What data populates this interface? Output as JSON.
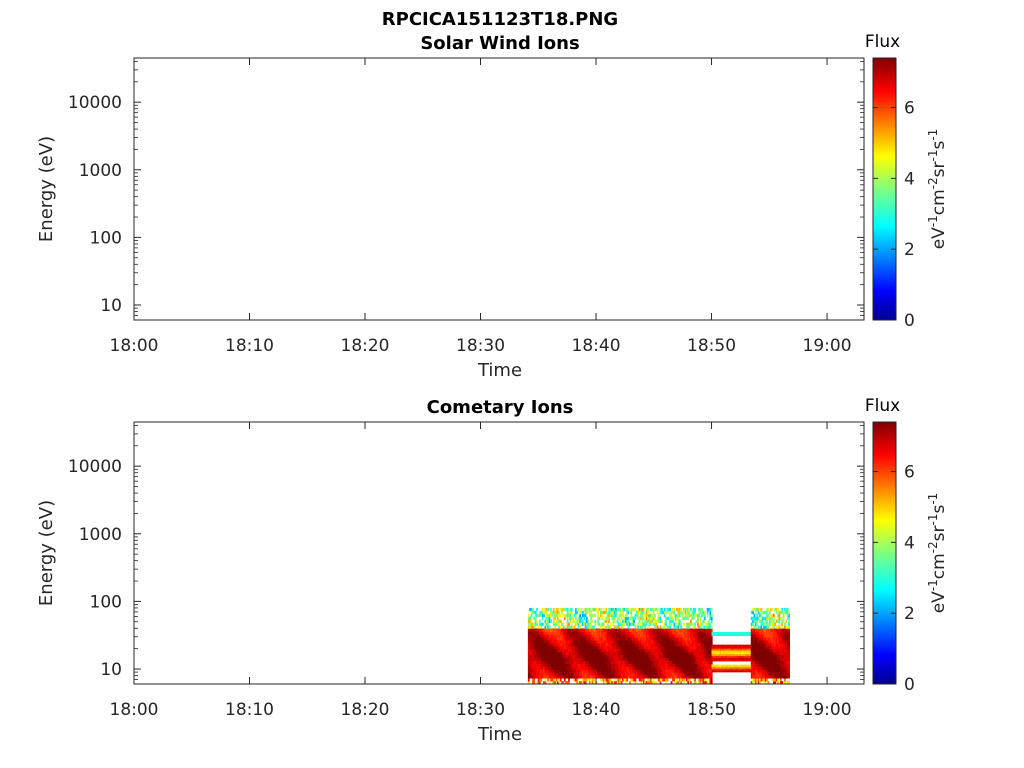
{
  "figure": {
    "title": "RPCICA151123T18.PNG"
  },
  "colorbar": {
    "label": "Flux",
    "unit_parts": [
      "eV",
      "-1",
      "cm",
      "-2",
      "sr",
      "-1",
      "s",
      "-1"
    ],
    "ticks": [
      "0",
      "2",
      "4",
      "6"
    ],
    "range": [
      0,
      7.4
    ],
    "colormap": "jet"
  },
  "chart_data": [
    {
      "type": "heatmap",
      "title": "Solar Wind Ions",
      "xlabel": "Time",
      "ylabel": "Energy (eV)",
      "x_ticks": [
        "18:00",
        "18:10",
        "18:20",
        "18:30",
        "18:40",
        "18:50",
        "19:00"
      ],
      "x_tick_minutes": [
        0,
        10,
        20,
        30,
        40,
        50,
        60
      ],
      "xlim_minutes": [
        0,
        63.2
      ],
      "y_scale": "log",
      "y_ticks": [
        "10",
        "100",
        "1000",
        "10000"
      ],
      "y_tick_values": [
        10,
        100,
        1000,
        10000
      ],
      "ylim": [
        6,
        45000
      ],
      "data_present": false,
      "blocks": []
    },
    {
      "type": "heatmap",
      "title": "Cometary Ions",
      "xlabel": "Time",
      "ylabel": "Energy (eV)",
      "x_ticks": [
        "18:00",
        "18:10",
        "18:20",
        "18:30",
        "18:40",
        "18:50",
        "19:00"
      ],
      "x_tick_minutes": [
        0,
        10,
        20,
        30,
        40,
        50,
        60
      ],
      "xlim_minutes": [
        0,
        63.2
      ],
      "y_scale": "log",
      "y_ticks": [
        "10",
        "100",
        "1000",
        "10000"
      ],
      "y_tick_values": [
        10,
        100,
        1000,
        10000
      ],
      "ylim": [
        6,
        45000
      ],
      "data_present": true,
      "blocks": [
        {
          "t0": 34.1,
          "t1": 50.0,
          "e_min": 6,
          "e_max": 80,
          "note": "dense high flux"
        },
        {
          "t0": 50.0,
          "t1": 53.4,
          "e_min": 8,
          "e_max": 40,
          "note": "banded flux"
        },
        {
          "t0": 53.4,
          "t1": 56.7,
          "e_min": 6,
          "e_max": 80,
          "note": "dense high flux"
        }
      ]
    }
  ]
}
